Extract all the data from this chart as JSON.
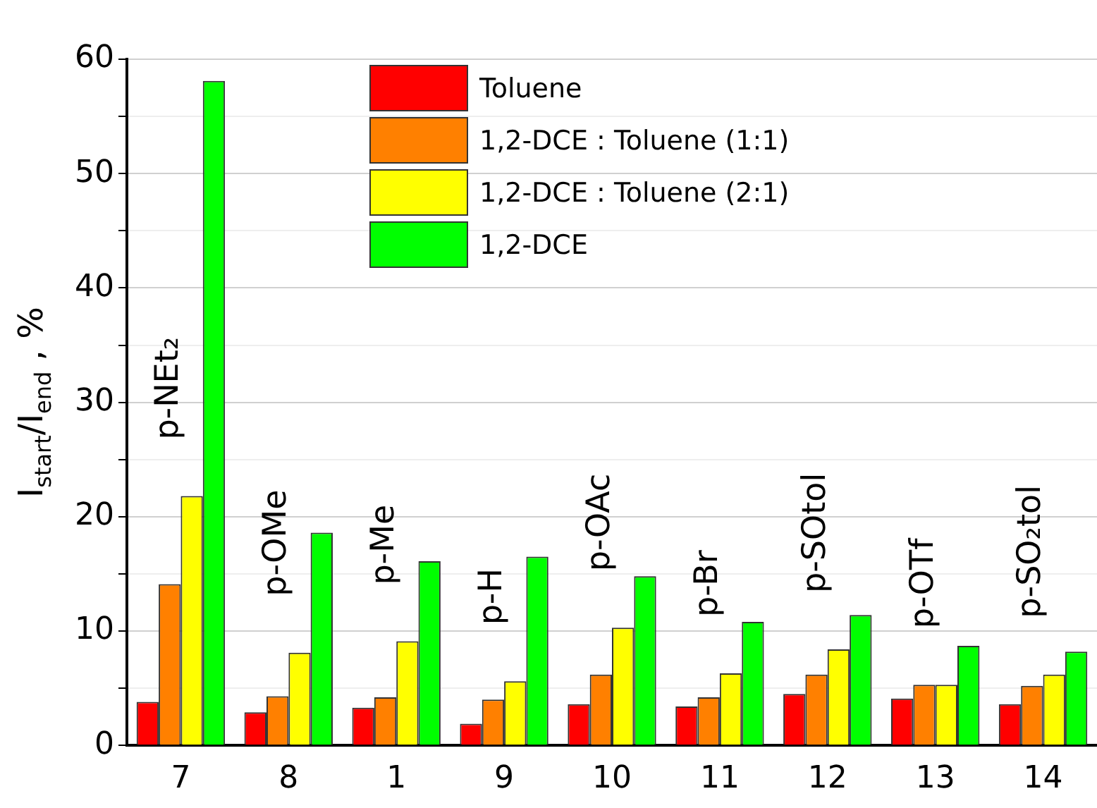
{
  "chart_data": {
    "type": "bar",
    "ylabel": "I$_{start}$/I$_{end}$ , %",
    "categories": [
      "7",
      "8",
      "1",
      "9",
      "10",
      "11",
      "12",
      "13",
      "14"
    ],
    "series": [
      {
        "name": "Toluene",
        "color": "#ff0000",
        "values": [
          3.8,
          2.9,
          3.3,
          1.9,
          3.6,
          3.4,
          4.5,
          4.1,
          3.6
        ]
      },
      {
        "name": "1,2-DCE : Toluene (1:1)",
        "color": "#ff8000",
        "values": [
          14.1,
          4.3,
          4.2,
          4.0,
          6.2,
          4.2,
          6.2,
          5.3,
          5.2
        ]
      },
      {
        "name": "1,2-DCE : Toluene (2:1)",
        "color": "#ffff00",
        "values": [
          21.8,
          8.1,
          9.1,
          5.6,
          10.3,
          6.3,
          8.4,
          5.3,
          6.2
        ]
      },
      {
        "name": "1,2-DCE",
        "color": "#00ff00",
        "values": [
          58.1,
          18.6,
          16.1,
          16.5,
          14.8,
          10.8,
          11.4,
          8.7,
          8.2
        ]
      }
    ],
    "ylim": [
      0,
      60
    ],
    "yticks": [
      0,
      {
        "value": 5,
        "label": null
      },
      10,
      {
        "value": 15,
        "label": null
      },
      20,
      {
        "value": 25,
        "label": null
      },
      30,
      {
        "value": 35,
        "label": null
      },
      40,
      {
        "value": 45,
        "label": null
      },
      50,
      {
        "value": 55,
        "label": null
      },
      60
    ],
    "grid": "y",
    "legend": "top",
    "annotations": [
      "p-NEt₂",
      "p-OMe",
      "p-Me",
      "p-H",
      "p-OAc",
      "p-Br",
      "p-SOtol",
      "p-OTf",
      "p-SO₂tol"
    ]
  }
}
